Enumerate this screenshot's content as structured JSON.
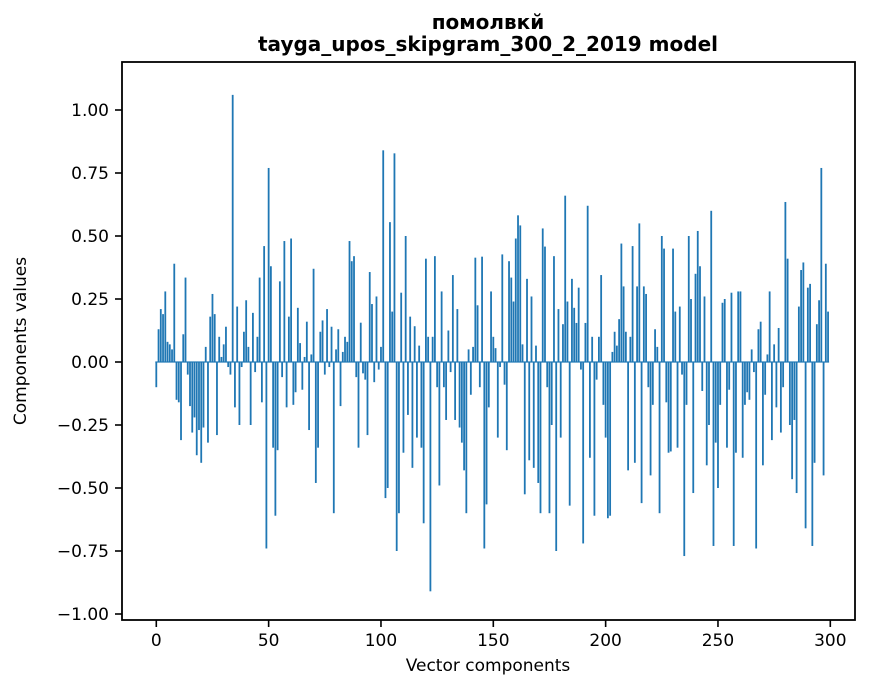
{
  "figure": {
    "title_line1": "помолвкй",
    "title_line2": "tayga_upos_skipgram_300_2_2019 model",
    "xlabel": "Vector components",
    "ylabel": "Components values"
  },
  "chart_data": {
    "type": "bar",
    "title": "помолвкй\ntayga_upos_skipgram_300_2_2019 model",
    "xlabel": "Vector components",
    "ylabel": "Components values",
    "bar_color": "#1f77b4",
    "axis_color": "#000000",
    "background_color": "#ffffff",
    "grid": false,
    "legend": false,
    "n_components": 300,
    "xlim": [
      -15.3,
      311
    ],
    "ylim": [
      -1.02,
      1.19
    ],
    "x_ticks": [
      0,
      50,
      100,
      150,
      200,
      250,
      300
    ],
    "y_ticks": [
      1.0,
      0.75,
      0.5,
      0.25,
      0.0,
      -0.25,
      -0.5,
      -0.75,
      -1.0
    ],
    "y_tick_labels": [
      "1.00",
      "0.75",
      "0.50",
      "0.25",
      "0.00",
      "−0.25",
      "−0.50",
      "−0.75",
      "−1.00"
    ],
    "values": [
      -0.1,
      0.13,
      0.21,
      0.19,
      0.28,
      0.08,
      0.07,
      0.05,
      0.39,
      -0.15,
      -0.16,
      -0.31,
      0.11,
      0.335,
      -0.05,
      -0.175,
      -0.28,
      -0.22,
      -0.37,
      -0.27,
      -0.4,
      -0.26,
      0.06,
      -0.32,
      0.18,
      0.27,
      0.19,
      -0.29,
      0.1,
      0.02,
      0.07,
      0.14,
      -0.02,
      -0.05,
      1.06,
      -0.18,
      0.22,
      -0.25,
      -0.02,
      0.12,
      0.245,
      0.06,
      -0.25,
      0.195,
      -0.04,
      0.1,
      0.335,
      -0.16,
      0.46,
      -0.74,
      0.77,
      0.38,
      -0.34,
      -0.61,
      -0.35,
      0.32,
      -0.06,
      0.48,
      -0.18,
      0.18,
      0.49,
      -0.17,
      -0.12,
      0.215,
      0.075,
      -0.11,
      0.02,
      0.16,
      -0.27,
      0.03,
      0.37,
      -0.48,
      -0.34,
      0.12,
      0.165,
      -0.05,
      0.21,
      -0.02,
      0.14,
      -0.6,
      0.05,
      0.13,
      -0.175,
      0.04,
      0.1,
      0.08,
      0.48,
      0.4,
      0.42,
      -0.06,
      -0.34,
      0.156,
      -0.045,
      -0.07,
      -0.29,
      0.357,
      0.23,
      -0.08,
      0.26,
      -0.03,
      0.06,
      0.84,
      -0.54,
      -0.5,
      0.555,
      0.2,
      0.828,
      -0.75,
      -0.6,
      0.275,
      -0.36,
      0.5,
      -0.21,
      0.18,
      -0.42,
      0.142,
      -0.3,
      0.065,
      -0.34,
      -0.64,
      0.41,
      0.1,
      -0.91,
      0.1,
      0.42,
      -0.1,
      -0.49,
      0.28,
      -0.1,
      -0.23,
      0.125,
      -0.04,
      0.345,
      -0.23,
      0.21,
      -0.26,
      -0.32,
      -0.43,
      -0.6,
      0.05,
      -0.13,
      0.06,
      0.414,
      0.225,
      -0.1,
      0.418,
      -0.74,
      -0.565,
      -0.18,
      0.28,
      0.1,
      0.055,
      -0.3,
      -0.02,
      0.427,
      -0.09,
      -0.35,
      0.4,
      0.335,
      0.24,
      0.49,
      0.582,
      0.542,
      0.07,
      -0.525,
      0.33,
      -0.39,
      0.26,
      -0.42,
      0.065,
      -0.48,
      -0.6,
      0.53,
      0.458,
      -0.1,
      -0.6,
      -0.25,
      0.42,
      -0.75,
      0.21,
      -0.3,
      0.15,
      0.66,
      0.24,
      -0.57,
      0.33,
      0.215,
      0.155,
      0.295,
      -0.03,
      -0.72,
      0.155,
      0.62,
      -0.38,
      0.1,
      -0.61,
      -0.07,
      0.1,
      0.345,
      -0.17,
      -0.3,
      -0.62,
      -0.61,
      0.04,
      0.12,
      0.065,
      0.17,
      0.47,
      0.3,
      0.12,
      -0.43,
      0.1,
      0.46,
      -0.4,
      0.3,
      0.55,
      -0.56,
      0.3,
      0.27,
      -0.1,
      -0.45,
      -0.17,
      0.13,
      0.06,
      -0.6,
      0.5,
      0.45,
      -0.16,
      -0.36,
      -0.355,
      0.45,
      0.2,
      -0.34,
      0.22,
      -0.05,
      -0.77,
      -0.17,
      0.5,
      0.25,
      -0.52,
      0.35,
      0.52,
      0.38,
      -0.115,
      0.26,
      -0.41,
      -0.25,
      0.6,
      -0.73,
      -0.32,
      -0.5,
      -0.17,
      0.235,
      0.25,
      -0.34,
      -0.11,
      0.275,
      -0.73,
      -0.36,
      0.28,
      0.28,
      -0.38,
      -0.17,
      -0.12,
      -0.15,
      0.05,
      -0.04,
      -0.74,
      0.13,
      0.16,
      -0.41,
      -0.13,
      0.03,
      0.28,
      -0.31,
      0.07,
      -0.18,
      0.135,
      -0.28,
      -0.1,
      0.635,
      0.41,
      -0.25,
      -0.465,
      -0.23,
      -0.52,
      0.22,
      0.365,
      0.395,
      -0.66,
      0.295,
      0.31,
      -0.73,
      -0.4,
      0.15,
      0.245,
      0.77,
      -0.45,
      0.39,
      0.2
    ]
  }
}
